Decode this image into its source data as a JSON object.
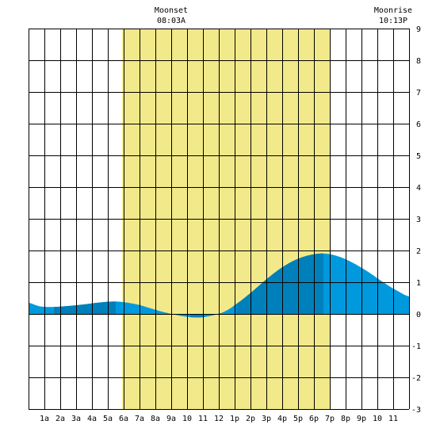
{
  "chart_data": {
    "type": "area",
    "title": "",
    "xlabel": "",
    "ylabel": "",
    "x_range_hours": [
      0,
      24
    ],
    "ylim": [
      -3,
      9
    ],
    "grid": true,
    "x_tick_labels": [
      "1a",
      "2a",
      "3a",
      "4a",
      "5a",
      "6a",
      "7a",
      "8a",
      "9a",
      "10",
      "11",
      "12",
      "1p",
      "2p",
      "3p",
      "4p",
      "5p",
      "6p",
      "7p",
      "8p",
      "9p",
      "10",
      "11"
    ],
    "y_tick_labels": [
      "9",
      "8",
      "7",
      "6",
      "5",
      "4",
      "3",
      "2",
      "1",
      "0",
      "-1",
      "-2",
      "-3"
    ],
    "moon_window": {
      "start_hour": 5.9,
      "end_hour": 19.0
    },
    "annotations": [
      {
        "name": "moonset",
        "label": "Moonset",
        "time": "08:03A"
      },
      {
        "name": "moonrise",
        "label": "Moonrise",
        "time": "10:13P"
      }
    ],
    "series": [
      {
        "x": [
          0,
          0.7,
          1.5,
          2.5,
          3.5,
          4.5,
          5.3,
          6.0,
          7.0,
          8.0,
          9.0,
          10.0,
          10.8,
          11.5,
          12.3,
          13.0,
          14.0,
          15.0,
          16.0,
          17.0,
          18.0,
          18.7,
          19.5,
          20.5,
          21.5,
          22.5,
          23.3,
          24.0
        ],
        "y": [
          0.35,
          0.24,
          0.22,
          0.25,
          0.3,
          0.36,
          0.39,
          0.37,
          0.28,
          0.13,
          0.0,
          -0.09,
          -0.11,
          -0.06,
          0.06,
          0.28,
          0.66,
          1.09,
          1.47,
          1.74,
          1.88,
          1.9,
          1.82,
          1.6,
          1.3,
          0.96,
          0.72,
          0.55
        ]
      }
    ],
    "highlighted_segments": [
      {
        "from_hour": 1.6,
        "to_hour": 5.5
      },
      {
        "from_hour": 10.2,
        "to_hour": 11.1
      },
      {
        "from_hour": 13.1,
        "to_hour": 18.6
      }
    ],
    "colors": {
      "daylight_band": "#f2e98a",
      "tide_fill": "#0099dd",
      "tide_fill_dark": "#0080bb",
      "grid": "#000000",
      "background": "#ffffff"
    }
  }
}
